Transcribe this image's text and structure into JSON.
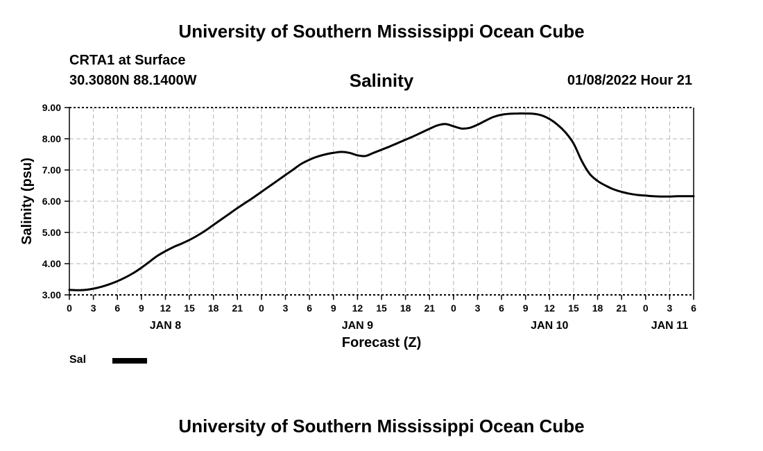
{
  "header": {
    "title": "University of Southern Mississippi Ocean Cube",
    "station": "CRTA1 at Surface",
    "coordinates": "30.3080N  88.1400W",
    "datetime": "01/08/2022 Hour 21"
  },
  "footer": {
    "title": "University of Southern Mississippi Ocean Cube"
  },
  "legend": {
    "label": "Sal",
    "color": "#000000"
  },
  "chart_data": {
    "type": "line",
    "title": "Salinity",
    "xlabel": "Forecast (Z)",
    "ylabel": "Salinity (psu)",
    "xlim": [
      0,
      78
    ],
    "ylim": [
      3.0,
      9.0
    ],
    "grid": true,
    "x_unit": "forecast hours from JAN 8 00Z",
    "y_ticks": [
      3,
      4,
      5,
      6,
      7,
      8,
      9
    ],
    "y_tick_labels": [
      "3.00",
      "4.00",
      "5.00",
      "6.00",
      "7.00",
      "8.00",
      "9.00"
    ],
    "x_ticks": [
      0,
      3,
      6,
      9,
      12,
      15,
      18,
      21,
      24,
      27,
      30,
      33,
      36,
      39,
      42,
      45,
      48,
      51,
      54,
      57,
      60,
      63,
      66,
      69,
      72,
      75,
      78
    ],
    "x_tick_labels": [
      "0",
      "3",
      "6",
      "9",
      "12",
      "15",
      "18",
      "21",
      "0",
      "3",
      "6",
      "9",
      "12",
      "15",
      "18",
      "21",
      "0",
      "3",
      "6",
      "9",
      "12",
      "15",
      "18",
      "21",
      "0",
      "3",
      "6"
    ],
    "day_labels": [
      {
        "text": "JAN 8",
        "x": 12
      },
      {
        "text": "JAN 9",
        "x": 36
      },
      {
        "text": "JAN 10",
        "x": 60
      },
      {
        "text": "JAN 11",
        "x": 75
      }
    ],
    "series": [
      {
        "name": "Sal",
        "x": [
          0,
          1,
          2,
          3,
          4,
          5,
          6,
          7,
          8,
          9,
          10,
          11,
          12,
          13,
          14,
          15,
          16,
          17,
          18,
          19,
          20,
          21,
          22,
          23,
          24,
          25,
          26,
          27,
          28,
          29,
          30,
          31,
          32,
          33,
          34,
          35,
          36,
          37,
          38,
          39,
          40,
          41,
          42,
          43,
          44,
          45,
          46,
          47,
          48,
          49,
          50,
          51,
          52,
          53,
          54,
          55,
          56,
          57,
          58,
          59,
          60,
          61,
          62,
          63,
          64,
          65,
          66,
          67,
          68,
          69,
          70,
          71,
          72,
          73,
          74,
          75,
          76,
          77,
          78
        ],
        "y": [
          3.16,
          3.15,
          3.16,
          3.2,
          3.26,
          3.34,
          3.44,
          3.56,
          3.7,
          3.87,
          4.06,
          4.25,
          4.4,
          4.53,
          4.64,
          4.76,
          4.9,
          5.06,
          5.24,
          5.42,
          5.6,
          5.78,
          5.95,
          6.12,
          6.3,
          6.48,
          6.66,
          6.84,
          7.02,
          7.2,
          7.33,
          7.43,
          7.5,
          7.55,
          7.58,
          7.55,
          7.47,
          7.45,
          7.55,
          7.65,
          7.75,
          7.86,
          7.97,
          8.08,
          8.2,
          8.32,
          8.43,
          8.47,
          8.4,
          8.33,
          8.35,
          8.45,
          8.58,
          8.7,
          8.77,
          8.8,
          8.81,
          8.81,
          8.8,
          8.75,
          8.63,
          8.45,
          8.2,
          7.85,
          7.3,
          6.88,
          6.65,
          6.5,
          6.38,
          6.3,
          6.24,
          6.2,
          6.18,
          6.16,
          6.15,
          6.15,
          6.16,
          6.16,
          6.16
        ]
      }
    ]
  }
}
